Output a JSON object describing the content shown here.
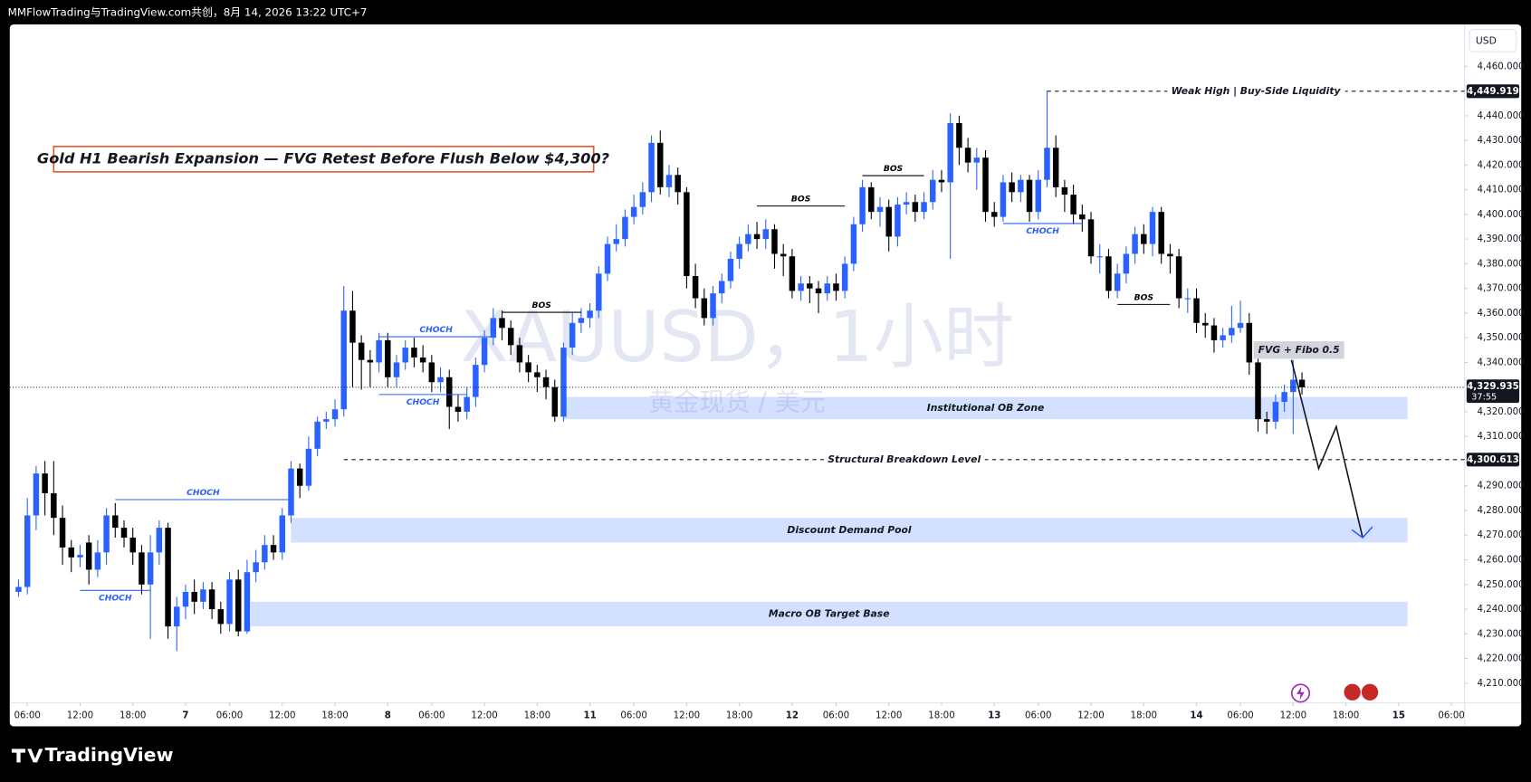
{
  "header": {
    "text": "MMFlowTrading与TradingView.com共创，8月 14, 2026 13:22 UTC+7"
  },
  "footer": {
    "brand": "TradingView"
  },
  "watermark": {
    "symbol": "XAUUSD，1小时",
    "description": "黄金现货 / 美元"
  },
  "currency": "USD",
  "chart_data": {
    "type": "candlestick",
    "title": "Gold H1 Bearish Expansion — FVG Retest Before Flush Below $4,300?",
    "up_color": "#2962ff",
    "down_color": "#000000",
    "open": [
      4247,
      4249,
      4278,
      4295,
      4287,
      4277,
      4265,
      4261,
      4267,
      4256,
      4263,
      4278,
      4273,
      4269,
      4263,
      4250,
      4263,
      4273,
      4233,
      4241,
      4247,
      4243,
      4248,
      4240,
      4234,
      4252,
      4231,
      4255,
      4259,
      4266,
      4263,
      4278,
      4297,
      4290,
      4305,
      4316,
      4317,
      4321,
      4361,
      4348,
      4341,
      4340,
      4349,
      4334,
      4340,
      4346,
      4342,
      4340,
      4332,
      4334,
      4322,
      4320,
      4326,
      4339,
      4350,
      4358,
      4354,
      4347,
      4340,
      4336,
      4334,
      4330,
      4318,
      4346,
      4356,
      4358,
      4361,
      4376,
      4388,
      4390,
      4399,
      4403,
      4409,
      4429,
      4411,
      4416,
      4409,
      4375,
      4366,
      4358,
      4368,
      4373,
      4382,
      4388,
      4392,
      4390,
      4394,
      4384,
      4383,
      4369,
      4372,
      4370,
      4368,
      4372,
      4369,
      4380,
      4396,
      4411,
      4401,
      4403,
      4391,
      4404,
      4405,
      4401,
      4405,
      4414,
      4413,
      4437,
      4427,
      4421,
      4423,
      4401,
      4399,
      4413,
      4409,
      4414,
      4401,
      4414,
      4427,
      4411,
      4408,
      4400,
      4398,
      4383,
      4383,
      4369,
      4376,
      4384,
      4392,
      4388,
      4401,
      4384,
      4383,
      4366,
      4366,
      4356,
      4355,
      4349,
      4351,
      4354,
      4356,
      4340,
      4317,
      4316,
      4324,
      4328,
      4333
    ],
    "high": [
      4252,
      4285,
      4298,
      4300,
      4300,
      4282,
      4268,
      4266,
      4270,
      4268,
      4281,
      4283,
      4276,
      4273,
      4266,
      4270,
      4276,
      4275,
      4245,
      4250,
      4252,
      4251,
      4251,
      4243,
      4255,
      4256,
      4260,
      4264,
      4270,
      4270,
      4281,
      4300,
      4299,
      4310,
      4318,
      4320,
      4325,
      4371,
      4369,
      4351,
      4345,
      4352,
      4352,
      4343,
      4349,
      4350,
      4347,
      4343,
      4338,
      4337,
      4327,
      4330,
      4342,
      4353,
      4362,
      4361,
      4357,
      4350,
      4343,
      4339,
      4337,
      4333,
      4348,
      4360,
      4362,
      4364,
      4379,
      4391,
      4396,
      4402,
      4408,
      4413,
      4432,
      4434,
      4420,
      4419,
      4411,
      4380,
      4370,
      4371,
      4376,
      4385,
      4391,
      4396,
      4397,
      4398,
      4396,
      4388,
      4386,
      4375,
      4375,
      4373,
      4375,
      4376,
      4383,
      4399,
      4414,
      4413,
      4407,
      4406,
      4407,
      4409,
      4408,
      4409,
      4418,
      4418,
      4441,
      4440,
      4431,
      4427,
      4426,
      4405,
      4416,
      4417,
      4416,
      4416,
      4418,
      4450,
      4432,
      4414,
      4412,
      4404,
      4401,
      4388,
      4386,
      4380,
      4387,
      4395,
      4396,
      4403,
      4403,
      4388,
      4386,
      4370,
      4370,
      4360,
      4358,
      4354,
      4363,
      4365,
      4360,
      4342,
      4320,
      4327,
      4331,
      4341,
      4336
    ],
    "low": [
      4245,
      4246,
      4272,
      4278,
      4270,
      4258,
      4255,
      4257,
      4250,
      4253,
      4258,
      4269,
      4265,
      4258,
      4246,
      4228,
      4258,
      4228,
      4223,
      4236,
      4238,
      4240,
      4236,
      4230,
      4231,
      4229,
      4230,
      4251,
      4256,
      4260,
      4260,
      4275,
      4285,
      4288,
      4302,
      4313,
      4314,
      4318,
      4330,
      4329,
      4330,
      4336,
      4330,
      4330,
      4337,
      4338,
      4336,
      4328,
      4328,
      4313,
      4316,
      4317,
      4322,
      4336,
      4347,
      4349,
      4343,
      4336,
      4332,
      4328,
      4325,
      4316,
      4316,
      4343,
      4352,
      4354,
      4358,
      4373,
      4385,
      4387,
      4396,
      4400,
      4405,
      4408,
      4407,
      4404,
      4370,
      4362,
      4355,
      4355,
      4364,
      4370,
      4378,
      4385,
      4386,
      4386,
      4378,
      4375,
      4366,
      4365,
      4364,
      4360,
      4365,
      4365,
      4366,
      4377,
      4393,
      4398,
      4395,
      4385,
      4387,
      4400,
      4397,
      4398,
      4402,
      4409,
      4382,
      4420,
      4417,
      4410,
      4397,
      4395,
      4397,
      4405,
      4405,
      4397,
      4398,
      4411,
      4407,
      4401,
      4396,
      4393,
      4380,
      4376,
      4366,
      4366,
      4372,
      4380,
      4384,
      4383,
      4380,
      4376,
      4362,
      4360,
      4352,
      4350,
      4344,
      4346,
      4348,
      4352,
      4335,
      4312,
      4311,
      4313,
      4320,
      4311,
      4327
    ],
    "close": [
      4249,
      4278,
      4295,
      4287,
      4277,
      4265,
      4261,
      4262,
      4256,
      4263,
      4278,
      4273,
      4269,
      4263,
      4250,
      4263,
      4273,
      4233,
      4241,
      4247,
      4243,
      4248,
      4240,
      4234,
      4252,
      4231,
      4255,
      4259,
      4266,
      4263,
      4278,
      4297,
      4290,
      4305,
      4316,
      4317,
      4321,
      4361,
      4348,
      4341,
      4340,
      4349,
      4334,
      4340,
      4346,
      4342,
      4340,
      4332,
      4334,
      4322,
      4320,
      4326,
      4339,
      4350,
      4358,
      4354,
      4347,
      4340,
      4336,
      4334,
      4330,
      4318,
      4346,
      4356,
      4358,
      4361,
      4376,
      4388,
      4390,
      4399,
      4403,
      4409,
      4429,
      4411,
      4416,
      4409,
      4375,
      4366,
      4358,
      4368,
      4373,
      4382,
      4388,
      4392,
      4390,
      4394,
      4384,
      4383,
      4369,
      4372,
      4370,
      4368,
      4372,
      4369,
      4380,
      4396,
      4411,
      4401,
      4403,
      4391,
      4404,
      4405,
      4401,
      4405,
      4414,
      4413,
      4437,
      4427,
      4421,
      4423,
      4401,
      4399,
      4413,
      4409,
      4414,
      4401,
      4414,
      4427,
      4411,
      4408,
      4400,
      4398,
      4383,
      4383,
      4369,
      4376,
      4384,
      4392,
      4388,
      4401,
      4384,
      4383,
      4366,
      4366,
      4356,
      4355,
      4349,
      4351,
      4354,
      4356,
      4340,
      4317,
      4316,
      4324,
      4328,
      4333,
      4329.935
    ],
    "xlim": [
      -1,
      164.5
    ],
    "xticks": [
      {
        "value": 1,
        "label": "06:00"
      },
      {
        "value": 7,
        "label": "12:00"
      },
      {
        "value": 13,
        "label": "18:00"
      },
      {
        "value": 19,
        "label": "7"
      },
      {
        "value": 24,
        "label": "06:00"
      },
      {
        "value": 30,
        "label": "12:00"
      },
      {
        "value": 36,
        "label": "18:00"
      },
      {
        "value": 42,
        "label": "8"
      },
      {
        "value": 47,
        "label": "06:00"
      },
      {
        "value": 53,
        "label": "12:00"
      },
      {
        "value": 59,
        "label": "18:00"
      },
      {
        "value": 65,
        "label": "11"
      },
      {
        "value": 70,
        "label": "06:00"
      },
      {
        "value": 76,
        "label": "12:00"
      },
      {
        "value": 82,
        "label": "18:00"
      },
      {
        "value": 88,
        "label": "12"
      },
      {
        "value": 93,
        "label": "06:00"
      },
      {
        "value": 99,
        "label": "12:00"
      },
      {
        "value": 105,
        "label": "18:00"
      },
      {
        "value": 111,
        "label": "13"
      },
      {
        "value": 116,
        "label": "06:00"
      },
      {
        "value": 122,
        "label": "12:00"
      },
      {
        "value": 128,
        "label": "18:00"
      },
      {
        "value": 134,
        "label": "14"
      },
      {
        "value": 139,
        "label": "06:00"
      },
      {
        "value": 145,
        "label": "12:00"
      },
      {
        "value": 151,
        "label": "18:00"
      },
      {
        "value": 157,
        "label": "15"
      },
      {
        "value": 163,
        "label": "06:00"
      }
    ],
    "ylim": [
      4202,
      4477
    ],
    "yticks": [
      {
        "value": 4210,
        "label": "4,210.000"
      },
      {
        "value": 4220,
        "label": "4,220.000"
      },
      {
        "value": 4230,
        "label": "4,230.000"
      },
      {
        "value": 4240,
        "label": "4,240.000"
      },
      {
        "value": 4250,
        "label": "4,250.000"
      },
      {
        "value": 4260,
        "label": "4,260.000"
      },
      {
        "value": 4270,
        "label": "4,270.000"
      },
      {
        "value": 4280,
        "label": "4,280.000"
      },
      {
        "value": 4290,
        "label": "4,290.000"
      },
      {
        "value": 4310,
        "label": "4,310.000"
      },
      {
        "value": 4320,
        "label": "4,320.000"
      },
      {
        "value": 4340,
        "label": "4,340.000"
      },
      {
        "value": 4350,
        "label": "4,350.000"
      },
      {
        "value": 4360,
        "label": "4,360.000"
      },
      {
        "value": 4370,
        "label": "4,370.000"
      },
      {
        "value": 4380,
        "label": "4,380.000"
      },
      {
        "value": 4390,
        "label": "4,390.000"
      },
      {
        "value": 4400,
        "label": "4,400.000"
      },
      {
        "value": 4410,
        "label": "4,410.000"
      },
      {
        "value": 4420,
        "label": "4,420.000"
      },
      {
        "value": 4430,
        "label": "4,430.000"
      },
      {
        "value": 4440,
        "label": "4,440.000"
      },
      {
        "value": 4460,
        "label": "4,460.000"
      }
    ],
    "last_price": {
      "value": 4329.935,
      "label": "4,329.935",
      "countdown": "37:55"
    },
    "levels": [
      {
        "text": "Weak High | Buy-Side Liquidity",
        "value": 4449.919,
        "label": "4,449.919",
        "start": 117
      },
      {
        "text": "Structural Breakdown Level",
        "value": 4300.613,
        "label": "4,300.613",
        "start": 37
      }
    ],
    "zones": [
      {
        "text": "Institutional OB Zone",
        "top": 4326,
        "bottom": 4317,
        "start": 62,
        "end": 158
      },
      {
        "text": "Discount Demand Pool",
        "top": 4277,
        "bottom": 4267,
        "start": 31,
        "end": 158
      },
      {
        "text": "Macro OB Target Base",
        "top": 4243,
        "bottom": 4233,
        "start": 26.4,
        "end": 158
      }
    ],
    "structure": [
      {
        "text": "CHOCH",
        "value": 4284.4,
        "start": 11,
        "end": 31,
        "color": "#2962ff",
        "side": "above"
      },
      {
        "text": "CHOCH",
        "value": 4247.6,
        "start": 7,
        "end": 15,
        "color": "#2962ff",
        "side": "below"
      },
      {
        "text": "CHOCH",
        "value": 4350.4,
        "start": 41,
        "end": 54,
        "color": "#2962ff",
        "side": "above"
      },
      {
        "text": "CHOCH",
        "value": 4327,
        "start": 41,
        "end": 51,
        "color": "#2962ff",
        "side": "below"
      },
      {
        "text": "BOS",
        "value": 4360.3,
        "start": 55,
        "end": 64,
        "color": "#000000",
        "side": "above"
      },
      {
        "text": "BOS",
        "value": 4403.4,
        "start": 84,
        "end": 94,
        "color": "#000000",
        "side": "above"
      },
      {
        "text": "BOS",
        "value": 4415.7,
        "start": 96,
        "end": 103,
        "color": "#000000",
        "side": "above"
      },
      {
        "text": "CHOCH",
        "value": 4396.3,
        "start": 112,
        "end": 121,
        "color": "#2962ff",
        "side": "below"
      },
      {
        "text": "BOS",
        "value": 4363.5,
        "start": 125,
        "end": 131,
        "color": "#000000",
        "side": "above"
      }
    ],
    "callout": {
      "text": "FVG + Fibo 0.5",
      "value": 4345,
      "start": 140.5,
      "end": 150.8
    },
    "projection": {
      "x": [
        144.8,
        147.9,
        149.9,
        152.9
      ],
      "y": [
        4341,
        4297,
        4314,
        4269
      ]
    }
  }
}
